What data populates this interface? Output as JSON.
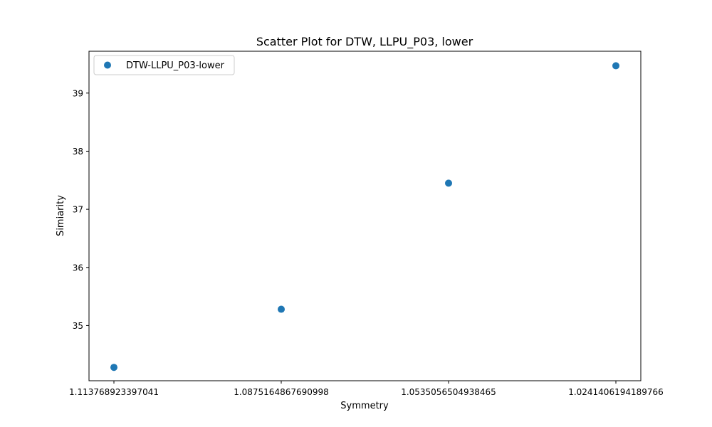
{
  "chart_data": {
    "type": "scatter",
    "title": "Scatter Plot for DTW, LLPU_P03, lower",
    "xlabel": "Symmetry",
    "ylabel": "Simiarity",
    "x_scale": "categorical",
    "x": [
      "1.113768923397041",
      "1.0875164867690998",
      "1.0535056504938465",
      "1.0241406194189766"
    ],
    "series": [
      {
        "name": "DTW-LLPU_P03-lower",
        "color": "#1f77b4",
        "values": [
          34.28,
          35.28,
          37.45,
          39.47
        ]
      }
    ],
    "ylim": [
      34.05,
      39.72
    ],
    "y_ticks": [
      "35",
      "36",
      "37",
      "38",
      "39"
    ],
    "grid": false,
    "legend_position": "top-left"
  }
}
